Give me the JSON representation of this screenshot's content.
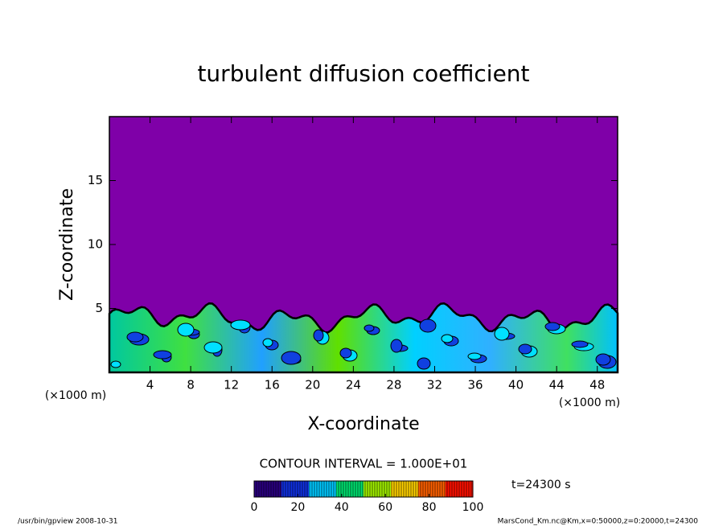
{
  "chart_data": {
    "type": "contour",
    "title": "turbulent diffusion coefficient",
    "xlabel": "X-coordinate",
    "ylabel": "Z-coordinate",
    "x_unit_labels": [
      "(×1000 m)",
      "(×1000 m)"
    ],
    "xlim": [
      0,
      50
    ],
    "xticks": [
      4,
      8,
      12,
      16,
      20,
      24,
      28,
      32,
      36,
      40,
      44,
      48
    ],
    "ylim": [
      0,
      20
    ],
    "yticks": [
      5,
      10,
      15
    ],
    "background_color": "#7f00a8",
    "contour_interval_label": "CONTOUR INTERVAL = 1.000E+01",
    "time_label": "t=24300 s",
    "colorbar": {
      "lim": [
        0,
        100
      ],
      "ticks": [
        0,
        20,
        40,
        60,
        80,
        100
      ],
      "colors": [
        "#2a0080",
        "#1030e0",
        "#00c8ff",
        "#00e070",
        "#a0f000",
        "#ffd000",
        "#ff6000",
        "#ff1000"
      ]
    },
    "footer_left": "/usr/bin/gpview   2008-10-31",
    "footer_right": "MarsCond_Km.nc@Km,x=0:50000,z=0:20000,t=24300"
  }
}
